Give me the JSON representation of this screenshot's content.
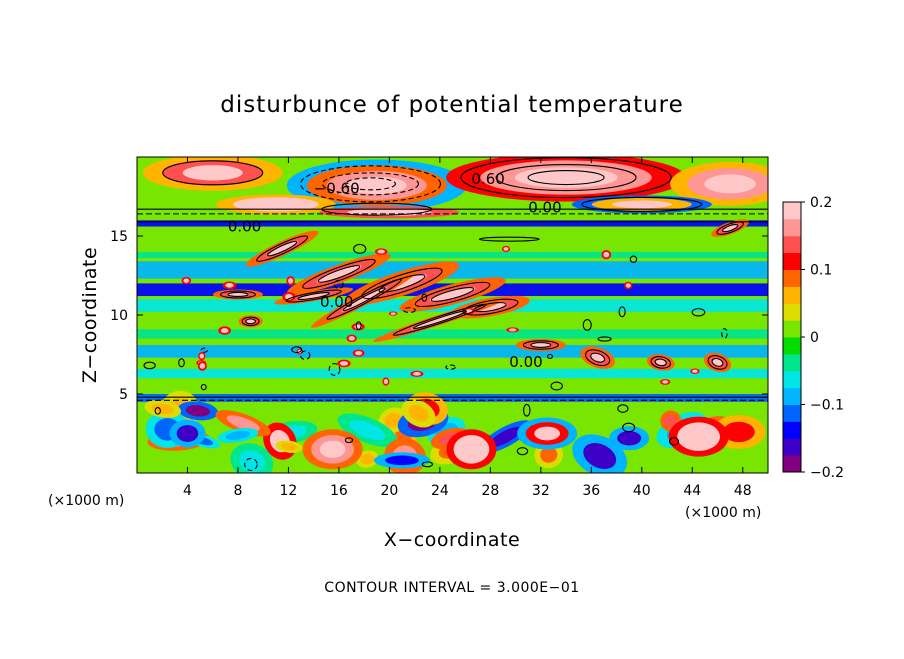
{
  "chart_data": {
    "type": "heatmap",
    "title": "disturbunce of potential temperature",
    "xlabel": "X−coordinate",
    "ylabel": "Z−coordinate",
    "x_unit": "(×1000 m)",
    "y_unit": "(×1000 m)",
    "xlim": [
      0,
      50
    ],
    "ylim": [
      0,
      20
    ],
    "x_ticks": [
      4,
      8,
      12,
      16,
      20,
      24,
      28,
      32,
      36,
      40,
      44,
      48
    ],
    "y_ticks": [
      5,
      10,
      15
    ],
    "colorbar": {
      "range": [
        -0.2,
        0.2
      ],
      "ticks": [
        0.2,
        0.1,
        0,
        -0.1,
        -0.2
      ],
      "tick_labels": [
        "0.2",
        "0.1",
        "0",
        "−0.1",
        "−0.2"
      ],
      "colors": [
        "#800080",
        "#3c00c8",
        "#0000ff",
        "#0064ff",
        "#00b4ff",
        "#00e6e6",
        "#00e68c",
        "#00dc00",
        "#78e600",
        "#dcdc00",
        "#ffb400",
        "#ff6400",
        "#ff0000",
        "#ff5050",
        "#ff9696",
        "#ffc8c8"
      ]
    },
    "contour_labels": [
      {
        "text": "−0.60",
        "x": 14.0,
        "z": 17.7
      },
      {
        "text": "0.60",
        "x": 26.5,
        "z": 18.3
      },
      {
        "text": "0.00",
        "x": 31.0,
        "z": 16.5
      },
      {
        "text": "0.00",
        "x": 7.2,
        "z": 15.3
      },
      {
        "text": "0.00",
        "x": 14.5,
        "z": 10.5
      },
      {
        "text": "0.00",
        "x": 29.5,
        "z": 6.7
      }
    ],
    "contour_interval_label": "CONTOUR INTERVAL = 3.000E−01",
    "grid": false
  }
}
